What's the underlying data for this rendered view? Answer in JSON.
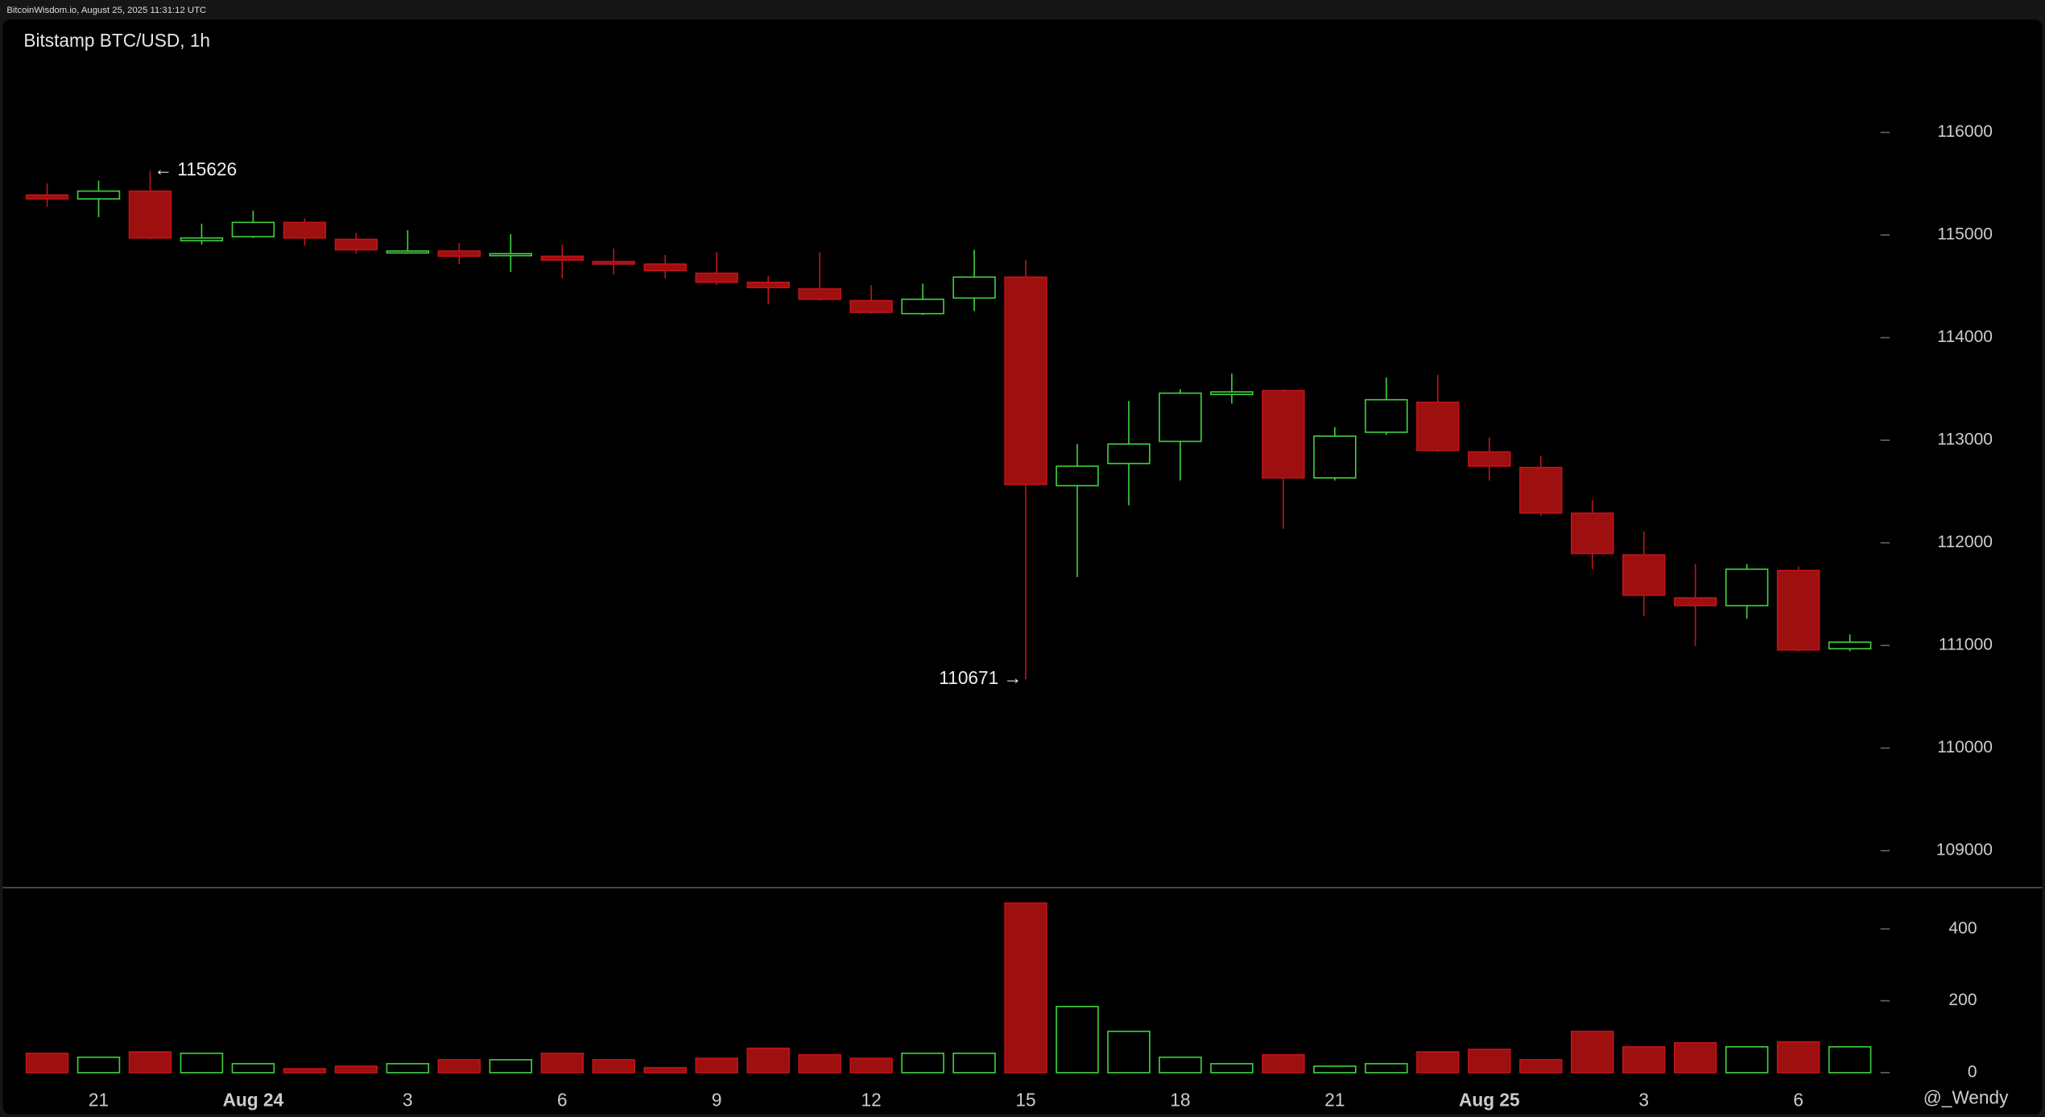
{
  "header": "BitcoinWisdom.io, August 25, 2025 11:31:12 UTC",
  "chart_data": {
    "type": "candlestick",
    "title": "Bitstamp BTC/USD, 1h",
    "categories": [
      null,
      "21",
      null,
      null,
      "Aug 24",
      null,
      null,
      "3",
      null,
      null,
      "6",
      null,
      null,
      "9",
      null,
      null,
      "12",
      null,
      null,
      "15",
      null,
      null,
      "18",
      null,
      null,
      "21",
      null,
      null,
      "Aug 25",
      null,
      null,
      "3",
      null,
      null,
      "6",
      null
    ],
    "open": [
      115390,
      115352,
      115428,
      114945,
      114984,
      115123,
      114958,
      114831,
      114844,
      114806,
      114793,
      114742,
      114717,
      114628,
      114539,
      114475,
      114361,
      114234,
      114386,
      114590,
      112557,
      112773,
      112989,
      113446,
      113484,
      112633,
      113078,
      113370,
      112887,
      112735,
      112290,
      111883,
      111464,
      111388,
      111731,
      110968
    ],
    "high": [
      115504,
      115530,
      115626,
      115111,
      115238,
      115161,
      115022,
      115047,
      114920,
      115009,
      114907,
      114869,
      114806,
      114831,
      114602,
      114831,
      114513,
      114526,
      114856,
      114755,
      112963,
      113383,
      113497,
      113649,
      113497,
      113128,
      113611,
      113637,
      113027,
      112849,
      112417,
      112112,
      111794,
      111794,
      111769,
      111108
    ],
    "low": [
      115276,
      115174,
      114958,
      114907,
      114971,
      114895,
      114818,
      114818,
      114717,
      114640,
      114577,
      114615,
      114577,
      114513,
      114323,
      114361,
      114234,
      114221,
      114259,
      110671,
      111667,
      112366,
      112607,
      113357,
      112137,
      112607,
      113052,
      112887,
      112607,
      112264,
      111743,
      111286,
      110994,
      111261,
      110943,
      110943
    ],
    "close": [
      115352,
      115428,
      114971,
      114971,
      115123,
      114971,
      114856,
      114844,
      114793,
      114818,
      114755,
      114717,
      114653,
      114539,
      114488,
      114374,
      114247,
      114374,
      114590,
      112569,
      112747,
      112963,
      113459,
      113471,
      112633,
      113040,
      113395,
      112900,
      112747,
      112290,
      111896,
      111489,
      111388,
      111743,
      110956,
      111032
    ],
    "volume": [
      54,
      43,
      58,
      54,
      25,
      11,
      18,
      25,
      36,
      36,
      54,
      36,
      14,
      40,
      68,
      50,
      40,
      54,
      54,
      472,
      184,
      115,
      43,
      25,
      50,
      18,
      25,
      58,
      65,
      36,
      115,
      72,
      83,
      72,
      86,
      72
    ],
    "up_color": "#3fd23f",
    "down_color": "#9e0f0f",
    "ylim": [
      108640,
      117100
    ],
    "yticks": [
      109000,
      110000,
      111000,
      112000,
      113000,
      114000,
      115000,
      116000
    ],
    "y2lim": [
      0,
      515
    ],
    "y2ticks": [
      0,
      200,
      400
    ],
    "high_label": "← 115626",
    "low_label": "110671 →",
    "watermark": "@_Wendy"
  }
}
